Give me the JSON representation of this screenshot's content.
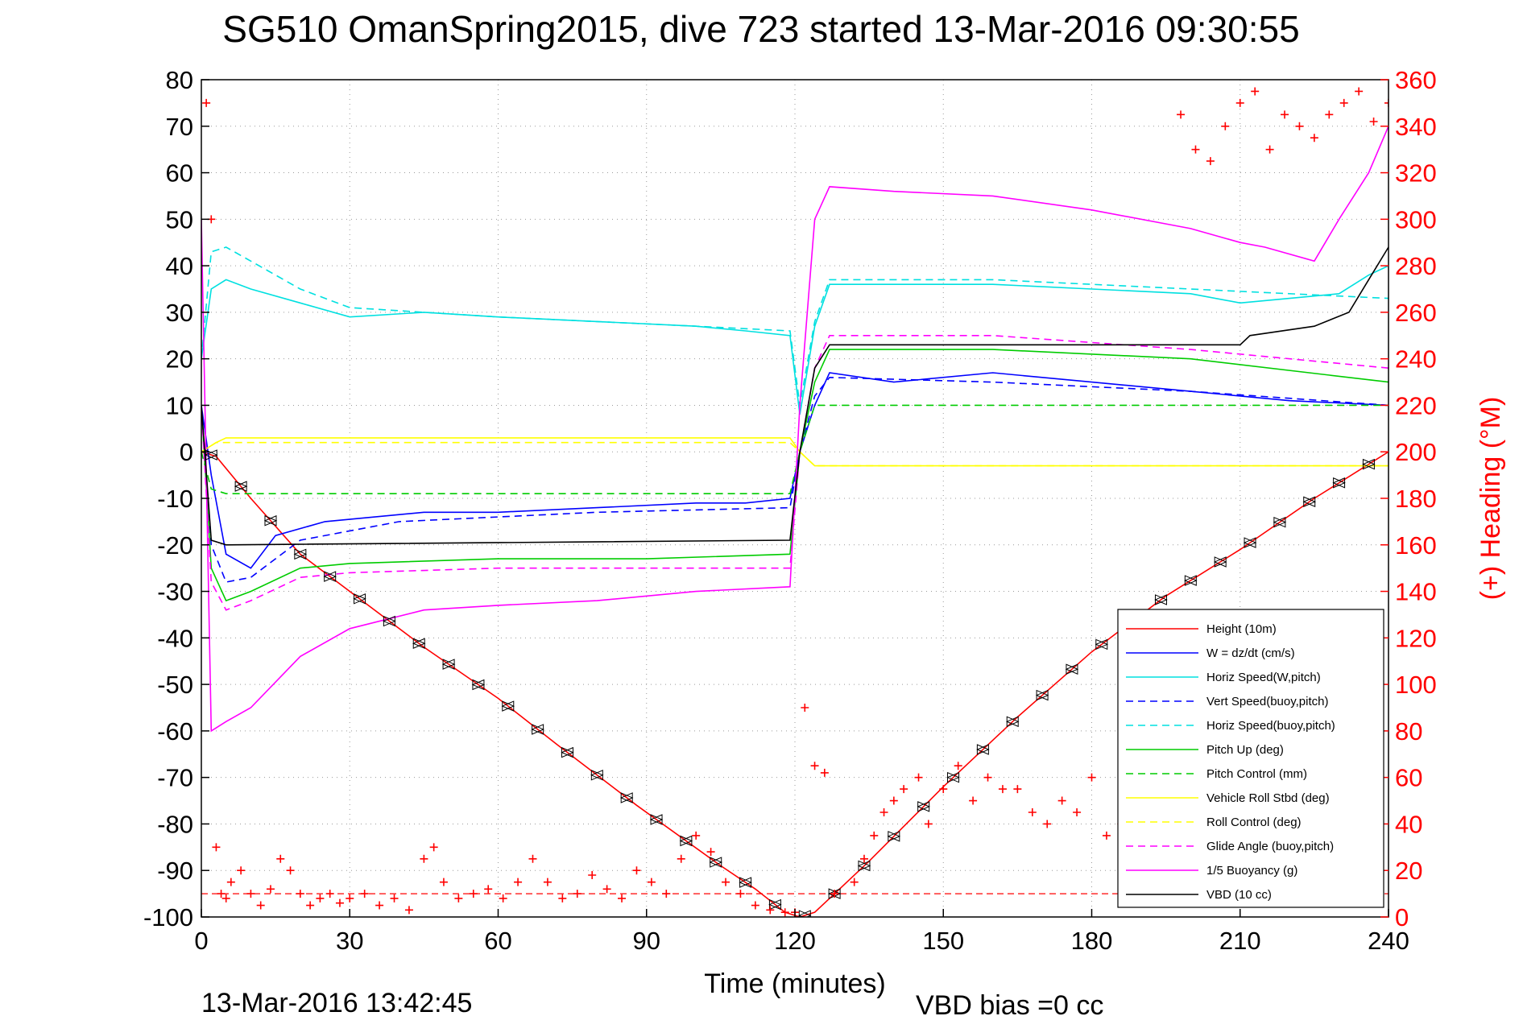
{
  "chart_data": {
    "type": "line",
    "title": "SG510 OmanSpring2015, dive 723 started 13-Mar-2016 09:30:55",
    "xlabel": "Time (minutes)",
    "ylabel_right": "(+) Heading (°M)",
    "xlim": [
      0,
      240
    ],
    "ylim": [
      -100,
      80
    ],
    "ylim_right": [
      0,
      360
    ],
    "x_ticks": [
      "0",
      "30",
      "60",
      "90",
      "120",
      "150",
      "180",
      "210",
      "240"
    ],
    "y_ticks": [
      "80",
      "70",
      "60",
      "50",
      "40",
      "30",
      "20",
      "10",
      "0",
      "-10",
      "-20",
      "-30",
      "-40",
      "-50",
      "-60",
      "-70",
      "-80",
      "-90",
      "-100"
    ],
    "y_ticks_right": [
      "360",
      "340",
      "320",
      "300",
      "280",
      "260",
      "240",
      "220",
      "200",
      "180",
      "160",
      "140",
      "120",
      "100",
      "80",
      "60",
      "40",
      "20",
      "0"
    ],
    "grid": true,
    "legend_position": "bottom-right",
    "footer_left": "13-Mar-2016 13:42:45",
    "footer_right": "VBD bias =0 cc",
    "series": [
      {
        "name": "Height (10m)",
        "color": "#ff0000",
        "style": "solid",
        "x": [
          0,
          3,
          10,
          20,
          45,
          60,
          72,
          88,
          105,
          112,
          118,
          121,
          124,
          127,
          135,
          150,
          165,
          180,
          195,
          210,
          225,
          240
        ],
        "y": [
          0,
          -1,
          -10,
          -22,
          -42,
          -53,
          -63,
          -76,
          -89,
          -94,
          -99,
          -100,
          -99,
          -96,
          -88,
          -72,
          -57,
          -43,
          -31,
          -21,
          -10,
          0
        ]
      },
      {
        "name": "W = dz/dt (cm/s)",
        "color": "#0000ff",
        "style": "solid",
        "x": [
          0,
          2,
          5,
          10,
          15,
          25,
          45,
          60,
          80,
          100,
          110,
          119,
          121,
          124,
          127,
          140,
          160,
          180,
          200,
          220,
          240
        ],
        "y": [
          10,
          -5,
          -22,
          -25,
          -18,
          -15,
          -13,
          -13,
          -12,
          -11,
          -11,
          -10,
          0,
          10,
          17,
          15,
          17,
          15,
          13,
          11,
          10
        ]
      },
      {
        "name": "Horiz Speed(W,pitch)",
        "color": "#00e0e0",
        "style": "solid",
        "x": [
          0,
          2,
          5,
          10,
          20,
          30,
          45,
          60,
          80,
          100,
          110,
          119,
          121,
          124,
          127,
          140,
          160,
          180,
          200,
          210,
          220,
          230,
          236,
          240
        ],
        "y": [
          20,
          35,
          37,
          35,
          32,
          29,
          30,
          29,
          28,
          27,
          26,
          25,
          8,
          27,
          36,
          36,
          36,
          35,
          34,
          32,
          33,
          34,
          38,
          40
        ]
      },
      {
        "name": "Vert Speed(buoy,pitch)",
        "color": "#0000ff",
        "style": "dashed",
        "x": [
          0,
          2,
          5,
          10,
          20,
          40,
          80,
          119,
          121,
          124,
          127,
          160,
          200,
          240
        ],
        "y": [
          10,
          -20,
          -28,
          -27,
          -19,
          -15,
          -13,
          -12,
          0,
          12,
          16,
          15,
          13,
          10
        ]
      },
      {
        "name": "Horiz Speed(buoy,pitch)",
        "color": "#00e0e0",
        "style": "dashed",
        "x": [
          0,
          2,
          5,
          10,
          20,
          30,
          60,
          100,
          119,
          121,
          124,
          127,
          160,
          200,
          240
        ],
        "y": [
          20,
          43,
          44,
          41,
          35,
          31,
          29,
          27,
          26,
          10,
          28,
          37,
          37,
          35,
          33
        ]
      },
      {
        "name": "Pitch Up (deg)",
        "color": "#00cc00",
        "style": "solid",
        "x": [
          0,
          2,
          5,
          10,
          20,
          30,
          60,
          90,
          119,
          121,
          124,
          127,
          160,
          200,
          240
        ],
        "y": [
          10,
          -25,
          -32,
          -30,
          -25,
          -24,
          -23,
          -23,
          -22,
          0,
          15,
          22,
          22,
          20,
          15
        ]
      },
      {
        "name": "Pitch Control (mm)",
        "color": "#00cc00",
        "style": "dashed",
        "x": [
          0,
          2,
          5,
          20,
          60,
          119,
          121,
          124,
          127,
          160,
          200,
          240
        ],
        "y": [
          0,
          -8,
          -9,
          -9,
          -9,
          -9,
          0,
          10,
          10,
          10,
          10,
          10
        ]
      },
      {
        "name": "Vehicle Roll Stbd (deg)",
        "color": "#ffff00",
        "style": "solid",
        "x": [
          0,
          3,
          5,
          30,
          60,
          90,
          119,
          121,
          124,
          127,
          160,
          200,
          240
        ],
        "y": [
          0,
          2,
          3,
          3,
          3,
          3,
          3,
          0,
          -3,
          -3,
          -3,
          -3,
          -3
        ]
      },
      {
        "name": "Roll Control (deg)",
        "color": "#ffff00",
        "style": "dashed",
        "x": [
          0,
          3,
          5,
          60,
          119,
          121,
          124,
          127,
          240
        ],
        "y": [
          0,
          2,
          2,
          2,
          2,
          0,
          -3,
          -3,
          -3
        ]
      },
      {
        "name": "Glide Angle (buoy,pitch)",
        "color": "#ff00ff",
        "style": "dashed",
        "x": [
          0,
          2,
          5,
          10,
          20,
          30,
          60,
          90,
          119,
          121,
          124,
          127,
          160,
          200,
          240
        ],
        "y": [
          10,
          -28,
          -34,
          -32,
          -27,
          -26,
          -25,
          -25,
          -25,
          0,
          18,
          25,
          25,
          22,
          18
        ]
      },
      {
        "name": "1/5 Buoyancy (g)",
        "color": "#ff00ff",
        "style": "solid",
        "x": [
          0,
          2,
          5,
          10,
          20,
          30,
          45,
          60,
          80,
          100,
          119,
          121,
          124,
          127,
          140,
          160,
          180,
          200,
          210,
          215,
          225,
          230,
          236,
          240
        ],
        "y": [
          50,
          -60,
          -58,
          -55,
          -44,
          -38,
          -34,
          -33,
          -32,
          -30,
          -29,
          10,
          50,
          57,
          56,
          55,
          52,
          48,
          45,
          44,
          41,
          50,
          60,
          70
        ]
      },
      {
        "name": "VBD (10 cc)",
        "color": "#000000",
        "style": "solid",
        "x": [
          0,
          2,
          5,
          119,
          121,
          124,
          127,
          210,
          212,
          225,
          232,
          236,
          240
        ],
        "y": [
          10,
          -19,
          -20,
          -19,
          0,
          18,
          23,
          23,
          25,
          27,
          30,
          37,
          44
        ]
      }
    ],
    "heading_markers": {
      "name": "(+) Heading (°M)",
      "color": "#ff0000",
      "marker": "+",
      "axis": "right",
      "t": [
        1,
        2,
        3,
        4,
        5,
        6,
        8,
        10,
        12,
        14,
        16,
        18,
        20,
        22,
        24,
        26,
        28,
        30,
        33,
        36,
        39,
        42,
        45,
        47,
        49,
        52,
        55,
        58,
        61,
        64,
        67,
        70,
        73,
        76,
        79,
        82,
        85,
        88,
        91,
        94,
        97,
        100,
        103,
        106,
        109,
        112,
        115,
        118,
        120,
        122,
        124,
        126,
        128,
        132,
        134,
        136,
        138,
        140,
        142,
        145,
        147,
        150,
        153,
        156,
        159,
        162,
        165,
        168,
        171,
        174,
        177,
        180,
        183,
        186,
        189,
        192,
        195,
        198,
        201,
        204,
        207,
        210,
        213,
        216,
        219,
        222,
        225,
        228,
        231,
        234,
        237,
        240
      ],
      "heading": [
        350,
        300,
        30,
        10,
        8,
        15,
        20,
        10,
        5,
        12,
        25,
        20,
        10,
        5,
        8,
        10,
        6,
        8,
        10,
        5,
        8,
        3,
        25,
        30,
        15,
        8,
        10,
        12,
        8,
        15,
        25,
        15,
        8,
        10,
        18,
        12,
        8,
        20,
        15,
        10,
        25,
        35,
        28,
        15,
        10,
        5,
        3,
        2,
        2,
        90,
        65,
        62,
        10,
        15,
        25,
        35,
        45,
        50,
        55,
        60,
        40,
        55,
        65,
        50,
        60,
        55,
        55,
        45,
        40,
        50,
        45,
        60,
        35,
        40,
        45,
        20,
        30,
        345,
        330,
        325,
        340,
        350,
        355,
        330,
        345,
        340,
        335,
        345,
        350,
        355,
        342,
        350
      ]
    },
    "depth_target_line": {
      "color": "#ff0000",
      "style": "dashed",
      "y": -95
    }
  }
}
